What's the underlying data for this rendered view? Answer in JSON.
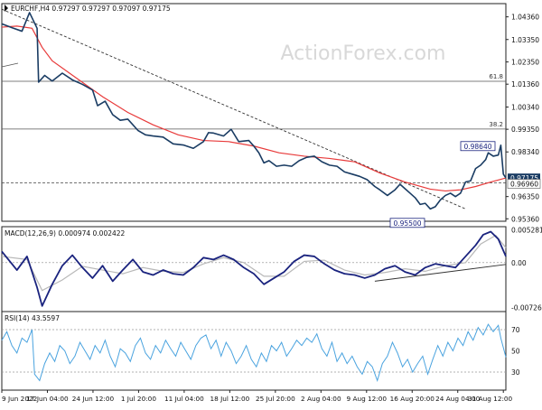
{
  "chart_data": {
    "type": "line",
    "symbol": "EURCHF",
    "timeframe": "H4",
    "title": "EURCHF,H4  0.97297 0.97297 0.97097 0.97175",
    "watermark": "ActionForex.com",
    "x_labels": [
      "9 Jun 2022",
      "17 Jun 04:00",
      "24 Jun 12:00",
      "1 Jul 20:00",
      "11 Jul 04:00",
      "18 Jul 12:00",
      "25 Jul 20:00",
      "2 Aug 04:00",
      "9 Aug 12:00",
      "16 Aug 20:00",
      "24 Aug 04:00",
      "31 Aug 12:00"
    ],
    "price_panel": {
      "ylim": [
        0.9525,
        1.0495
      ],
      "y_ticks": [
        "1.04360",
        "1.03350",
        "1.02350",
        "1.01360",
        "1.00340",
        "0.99350",
        "0.98340",
        "0.97175",
        "0.96960",
        "0.96350",
        "0.95360"
      ],
      "current_price": "0.97175",
      "current_price_value": 0.97175,
      "fib_levels": [
        {
          "label": "61.8",
          "value": 1.0149
        },
        {
          "label": "38.2",
          "value": 0.9936
        }
      ],
      "reference_level": {
        "label": "0.96960",
        "value": 0.9696
      },
      "annotations": [
        {
          "label": "0.98640",
          "value": 0.9864
        },
        {
          "label": "0.95500",
          "value": 0.955
        }
      ],
      "trendline": {
        "from": [
          0.0,
          1.047
        ],
        "to": [
          0.92,
          0.958
        ]
      },
      "price_series": [
        [
          0.0,
          1.0405
        ],
        [
          0.02,
          1.0388
        ],
        [
          0.04,
          1.0372
        ],
        [
          0.055,
          1.0455
        ],
        [
          0.07,
          1.0385
        ],
        [
          0.073,
          1.0145
        ],
        [
          0.085,
          1.0175
        ],
        [
          0.1,
          1.015
        ],
        [
          0.12,
          1.0185
        ],
        [
          0.14,
          1.0155
        ],
        [
          0.16,
          1.0135
        ],
        [
          0.18,
          1.011
        ],
        [
          0.19,
          1.004
        ],
        [
          0.205,
          1.006
        ],
        [
          0.22,
          1.0
        ],
        [
          0.235,
          0.9975
        ],
        [
          0.25,
          0.998
        ],
        [
          0.27,
          0.993
        ],
        [
          0.285,
          0.991
        ],
        [
          0.3,
          0.9905
        ],
        [
          0.32,
          0.99
        ],
        [
          0.34,
          0.987
        ],
        [
          0.36,
          0.9865
        ],
        [
          0.38,
          0.985
        ],
        [
          0.4,
          0.988
        ],
        [
          0.41,
          0.992
        ],
        [
          0.42,
          0.9918
        ],
        [
          0.44,
          0.9905
        ],
        [
          0.455,
          0.9935
        ],
        [
          0.47,
          0.988
        ],
        [
          0.49,
          0.9885
        ],
        [
          0.5,
          0.986
        ],
        [
          0.51,
          0.983
        ],
        [
          0.52,
          0.9785
        ],
        [
          0.53,
          0.9795
        ],
        [
          0.545,
          0.977
        ],
        [
          0.56,
          0.9775
        ],
        [
          0.575,
          0.977
        ],
        [
          0.59,
          0.9795
        ],
        [
          0.605,
          0.981
        ],
        [
          0.62,
          0.9815
        ],
        [
          0.635,
          0.979
        ],
        [
          0.65,
          0.9775
        ],
        [
          0.665,
          0.977
        ],
        [
          0.68,
          0.9745
        ],
        [
          0.695,
          0.9735
        ],
        [
          0.71,
          0.9725
        ],
        [
          0.725,
          0.971
        ],
        [
          0.74,
          0.968
        ],
        [
          0.75,
          0.9665
        ],
        [
          0.765,
          0.964
        ],
        [
          0.78,
          0.9665
        ],
        [
          0.79,
          0.969
        ],
        [
          0.8,
          0.967
        ],
        [
          0.81,
          0.965
        ],
        [
          0.82,
          0.963
        ],
        [
          0.83,
          0.96
        ],
        [
          0.84,
          0.9605
        ],
        [
          0.85,
          0.958
        ],
        [
          0.86,
          0.959
        ],
        [
          0.87,
          0.962
        ],
        [
          0.88,
          0.964
        ],
        [
          0.89,
          0.965
        ],
        [
          0.9,
          0.9635
        ],
        [
          0.91,
          0.965
        ],
        [
          0.92,
          0.97
        ],
        [
          0.93,
          0.9705
        ],
        [
          0.94,
          0.976
        ],
        [
          0.95,
          0.9775
        ],
        [
          0.96,
          0.98
        ],
        [
          0.965,
          0.983
        ],
        [
          0.975,
          0.9815
        ],
        [
          0.985,
          0.982
        ],
        [
          0.99,
          0.9864
        ],
        [
          0.995,
          0.9735
        ],
        [
          1.0,
          0.9718
        ]
      ],
      "moving_average": [
        [
          0.0,
          1.039
        ],
        [
          0.03,
          1.0395
        ],
        [
          0.06,
          1.0385
        ],
        [
          0.08,
          1.03
        ],
        [
          0.1,
          1.024
        ],
        [
          0.15,
          1.016
        ],
        [
          0.2,
          1.008
        ],
        [
          0.25,
          1.001
        ],
        [
          0.3,
          0.9955
        ],
        [
          0.35,
          0.991
        ],
        [
          0.4,
          0.9885
        ],
        [
          0.45,
          0.988
        ],
        [
          0.5,
          0.986
        ],
        [
          0.55,
          0.983
        ],
        [
          0.6,
          0.9815
        ],
        [
          0.65,
          0.9805
        ],
        [
          0.7,
          0.979
        ],
        [
          0.75,
          0.974
        ],
        [
          0.8,
          0.97
        ],
        [
          0.85,
          0.9668
        ],
        [
          0.88,
          0.966
        ],
        [
          0.91,
          0.9665
        ],
        [
          0.94,
          0.968
        ],
        [
          0.97,
          0.97
        ],
        [
          1.0,
          0.9718
        ]
      ]
    },
    "macd_panel": {
      "label": "MACD(12,26,9) 0.000974 0.002422",
      "ylim": [
        -0.0079,
        0.0058
      ],
      "y_ticks": [
        "0.005281",
        "0.00",
        "-0.007263"
      ],
      "macd_series": [
        [
          0.0,
          0.0018
        ],
        [
          0.03,
          -0.0012
        ],
        [
          0.05,
          0.001
        ],
        [
          0.07,
          -0.004
        ],
        [
          0.08,
          -0.007
        ],
        [
          0.1,
          -0.0035
        ],
        [
          0.12,
          -0.0005
        ],
        [
          0.14,
          0.0012
        ],
        [
          0.16,
          -0.0008
        ],
        [
          0.18,
          -0.0025
        ],
        [
          0.2,
          -0.0005
        ],
        [
          0.22,
          -0.003
        ],
        [
          0.24,
          -0.0012
        ],
        [
          0.26,
          0.0005
        ],
        [
          0.28,
          -0.0015
        ],
        [
          0.3,
          -0.002
        ],
        [
          0.32,
          -0.0012
        ],
        [
          0.34,
          -0.0018
        ],
        [
          0.36,
          -0.002
        ],
        [
          0.38,
          -0.0008
        ],
        [
          0.4,
          0.0008
        ],
        [
          0.42,
          0.0005
        ],
        [
          0.44,
          0.0012
        ],
        [
          0.46,
          0.0005
        ],
        [
          0.48,
          -0.0008
        ],
        [
          0.5,
          -0.0018
        ],
        [
          0.52,
          -0.0035
        ],
        [
          0.54,
          -0.0025
        ],
        [
          0.56,
          -0.0015
        ],
        [
          0.58,
          0.0002
        ],
        [
          0.6,
          0.0012
        ],
        [
          0.62,
          0.001
        ],
        [
          0.64,
          -0.0002
        ],
        [
          0.66,
          -0.0012
        ],
        [
          0.68,
          -0.0018
        ],
        [
          0.7,
          -0.002
        ],
        [
          0.72,
          -0.0025
        ],
        [
          0.74,
          -0.002
        ],
        [
          0.76,
          -0.001
        ],
        [
          0.78,
          -0.0005
        ],
        [
          0.8,
          -0.0015
        ],
        [
          0.82,
          -0.002
        ],
        [
          0.84,
          -0.0008
        ],
        [
          0.86,
          -0.0002
        ],
        [
          0.88,
          -0.0005
        ],
        [
          0.9,
          -0.0008
        ],
        [
          0.92,
          0.001
        ],
        [
          0.94,
          0.0028
        ],
        [
          0.955,
          0.0045
        ],
        [
          0.97,
          0.005
        ],
        [
          0.985,
          0.0038
        ],
        [
          1.0,
          0.001
        ]
      ],
      "signal_series": [
        [
          0.0,
          0.001
        ],
        [
          0.05,
          0.0005
        ],
        [
          0.08,
          -0.0045
        ],
        [
          0.12,
          -0.0028
        ],
        [
          0.16,
          -0.0006
        ],
        [
          0.2,
          -0.0012
        ],
        [
          0.24,
          -0.0018
        ],
        [
          0.28,
          -0.0008
        ],
        [
          0.32,
          -0.0014
        ],
        [
          0.36,
          -0.0016
        ],
        [
          0.4,
          -0.0002
        ],
        [
          0.44,
          0.0008
        ],
        [
          0.48,
          0.0
        ],
        [
          0.52,
          -0.0022
        ],
        [
          0.56,
          -0.0022
        ],
        [
          0.6,
          0.0002
        ],
        [
          0.64,
          0.0004
        ],
        [
          0.68,
          -0.0012
        ],
        [
          0.72,
          -0.002
        ],
        [
          0.76,
          -0.0016
        ],
        [
          0.8,
          -0.001
        ],
        [
          0.84,
          -0.0014
        ],
        [
          0.88,
          -0.0005
        ],
        [
          0.92,
          0.0
        ],
        [
          0.95,
          0.003
        ],
        [
          0.98,
          0.0044
        ],
        [
          1.0,
          0.0024
        ]
      ],
      "trendline": {
        "from": [
          0.74,
          -0.003
        ],
        "to": [
          1.0,
          -0.0003
        ]
      }
    },
    "rsi_panel": {
      "label": "RSI(14) 43.5597",
      "ylim": [
        13,
        87
      ],
      "y_ticks": [
        "70",
        "50",
        "30"
      ],
      "levels": [
        70,
        30
      ],
      "rsi_series": [
        [
          0.0,
          60
        ],
        [
          0.01,
          68
        ],
        [
          0.02,
          55
        ],
        [
          0.03,
          48
        ],
        [
          0.04,
          62
        ],
        [
          0.05,
          58
        ],
        [
          0.06,
          70
        ],
        [
          0.065,
          28
        ],
        [
          0.075,
          22
        ],
        [
          0.085,
          38
        ],
        [
          0.095,
          48
        ],
        [
          0.105,
          40
        ],
        [
          0.115,
          55
        ],
        [
          0.125,
          50
        ],
        [
          0.135,
          38
        ],
        [
          0.145,
          45
        ],
        [
          0.155,
          58
        ],
        [
          0.165,
          50
        ],
        [
          0.175,
          42
        ],
        [
          0.185,
          55
        ],
        [
          0.195,
          48
        ],
        [
          0.205,
          60
        ],
        [
          0.215,
          45
        ],
        [
          0.225,
          35
        ],
        [
          0.235,
          52
        ],
        [
          0.245,
          48
        ],
        [
          0.255,
          40
        ],
        [
          0.265,
          55
        ],
        [
          0.275,
          62
        ],
        [
          0.285,
          48
        ],
        [
          0.295,
          42
        ],
        [
          0.305,
          55
        ],
        [
          0.315,
          48
        ],
        [
          0.325,
          60
        ],
        [
          0.335,
          52
        ],
        [
          0.345,
          45
        ],
        [
          0.355,
          58
        ],
        [
          0.365,
          50
        ],
        [
          0.375,
          42
        ],
        [
          0.385,
          55
        ],
        [
          0.395,
          62
        ],
        [
          0.405,
          65
        ],
        [
          0.415,
          52
        ],
        [
          0.425,
          60
        ],
        [
          0.435,
          45
        ],
        [
          0.445,
          58
        ],
        [
          0.455,
          50
        ],
        [
          0.465,
          38
        ],
        [
          0.475,
          45
        ],
        [
          0.485,
          55
        ],
        [
          0.495,
          42
        ],
        [
          0.505,
          35
        ],
        [
          0.515,
          48
        ],
        [
          0.525,
          40
        ],
        [
          0.535,
          55
        ],
        [
          0.545,
          50
        ],
        [
          0.555,
          58
        ],
        [
          0.565,
          45
        ],
        [
          0.575,
          52
        ],
        [
          0.585,
          60
        ],
        [
          0.595,
          55
        ],
        [
          0.605,
          62
        ],
        [
          0.615,
          58
        ],
        [
          0.625,
          66
        ],
        [
          0.635,
          52
        ],
        [
          0.645,
          45
        ],
        [
          0.655,
          58
        ],
        [
          0.665,
          40
        ],
        [
          0.675,
          48
        ],
        [
          0.685,
          38
        ],
        [
          0.695,
          45
        ],
        [
          0.705,
          35
        ],
        [
          0.715,
          28
        ],
        [
          0.725,
          40
        ],
        [
          0.735,
          35
        ],
        [
          0.745,
          22
        ],
        [
          0.755,
          38
        ],
        [
          0.765,
          45
        ],
        [
          0.775,
          58
        ],
        [
          0.785,
          48
        ],
        [
          0.795,
          35
        ],
        [
          0.805,
          42
        ],
        [
          0.815,
          30
        ],
        [
          0.825,
          38
        ],
        [
          0.835,
          45
        ],
        [
          0.845,
          28
        ],
        [
          0.855,
          42
        ],
        [
          0.865,
          55
        ],
        [
          0.875,
          45
        ],
        [
          0.885,
          58
        ],
        [
          0.895,
          50
        ],
        [
          0.905,
          62
        ],
        [
          0.915,
          55
        ],
        [
          0.925,
          68
        ],
        [
          0.935,
          60
        ],
        [
          0.945,
          72
        ],
        [
          0.955,
          65
        ],
        [
          0.965,
          75
        ],
        [
          0.975,
          68
        ],
        [
          0.985,
          74
        ],
        [
          0.99,
          62
        ],
        [
          1.0,
          44
        ]
      ]
    },
    "colors": {
      "price": "#1a3c63",
      "moving_average": "#e83a3a",
      "macd": "#1a237e",
      "signal": "#b8b8b8",
      "rsi": "#4aa3df",
      "trendline": "#333333",
      "price_box_bg": "#1a3c63",
      "annotation_border": "#1a237e",
      "watermark": "#d8d8d8"
    }
  }
}
